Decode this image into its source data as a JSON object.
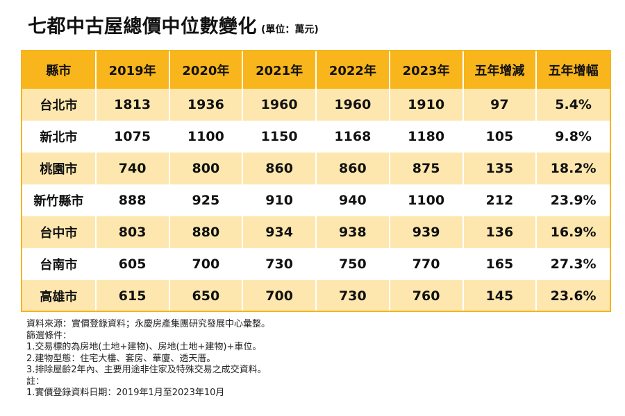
{
  "title": "七都中古屋總價中位數變化",
  "unit_note": "(單位：萬元)",
  "table": {
    "headers": [
      "縣市",
      "2019年",
      "2020年",
      "2021年",
      "2022年",
      "2023年",
      "五年增減",
      "五年增幅"
    ],
    "rows": [
      [
        "台北市",
        "1813",
        "1936",
        "1960",
        "1960",
        "1910",
        "97",
        "5.4%"
      ],
      [
        "新北市",
        "1075",
        "1100",
        "1150",
        "1168",
        "1180",
        "105",
        "9.8%"
      ],
      [
        "桃園市",
        "740",
        "800",
        "860",
        "860",
        "875",
        "135",
        "18.2%"
      ],
      [
        "新竹縣市",
        "888",
        "925",
        "910",
        "940",
        "1100",
        "212",
        "23.9%"
      ],
      [
        "台中市",
        "803",
        "880",
        "934",
        "938",
        "939",
        "136",
        "16.9%"
      ],
      [
        "台南市",
        "605",
        "700",
        "730",
        "750",
        "770",
        "165",
        "27.3%"
      ],
      [
        "高雄市",
        "615",
        "650",
        "700",
        "730",
        "760",
        "145",
        "23.6%"
      ]
    ]
  },
  "notes": [
    "資料來源：實價登錄資料；永慶房產集團研究發展中心彙整。",
    "篩選條件：",
    "1.交易標的為房地(土地+建物)、房地(土地+建物)+車位。",
    "2.建物型態：住宅大樓、套房、華廈、透天厝。",
    "3.排除屋齡2年內、主要用途非住家及特殊交易之成交資料。",
    "註：",
    "1.實價登錄資料日期：2019年1月至2023年10月"
  ],
  "colors": {
    "header_bg": "#f8b51c",
    "stripe_bg": "#fde7ae",
    "row_bg": "#ffffff",
    "border": "#f5b51e"
  }
}
